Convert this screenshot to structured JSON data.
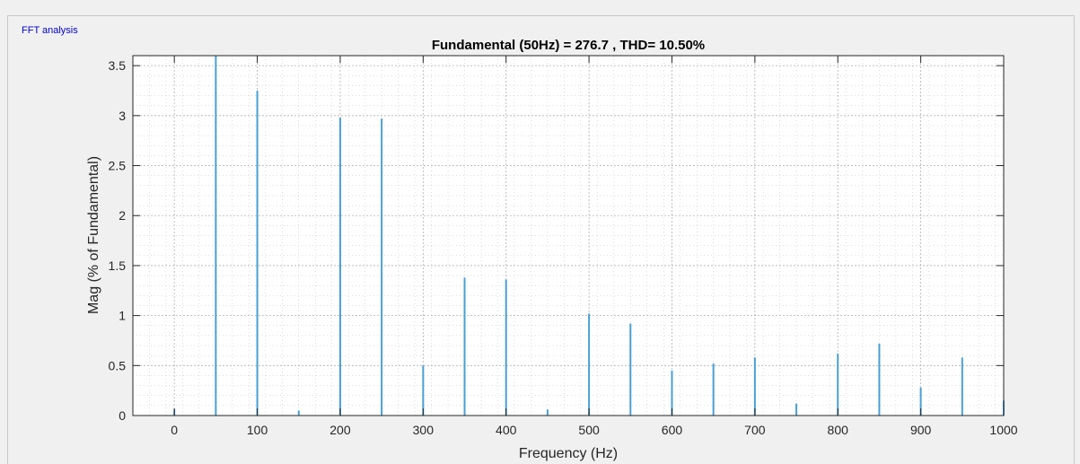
{
  "panel": {
    "title": "FFT analysis"
  },
  "colors": {
    "bar": "#4a9fd6",
    "axis": "#262626",
    "grid": "#bdbdbd",
    "background": "#ffffff"
  },
  "chart_data": {
    "type": "bar",
    "title": "Fundamental (50Hz) = 276.7 , THD= 10.50%",
    "xlabel": "Frequency (Hz)",
    "ylabel": "Mag (% of Fundamental)",
    "xlim": [
      -50,
      1000
    ],
    "ylim": [
      0,
      3.6
    ],
    "xticks": [
      0,
      100,
      200,
      300,
      400,
      500,
      600,
      700,
      800,
      900,
      1000
    ],
    "xtick_labels": [
      "0",
      "100",
      "200",
      "300",
      "400",
      "500",
      "600",
      "700",
      "800",
      "900",
      "1000"
    ],
    "yticks": [
      0,
      0.5,
      1,
      1.5,
      2,
      2.5,
      3,
      3.5
    ],
    "ytick_labels": [
      "0",
      "0.5",
      "1",
      "1.5",
      "2",
      "2.5",
      "3",
      "3.5"
    ],
    "grid": "on (major and minor)",
    "x": [
      0,
      50,
      100,
      150,
      200,
      250,
      300,
      350,
      400,
      450,
      500,
      550,
      600,
      650,
      700,
      750,
      800,
      850,
      900,
      950,
      1000
    ],
    "values": [
      0.06,
      3.6,
      3.25,
      0.05,
      2.98,
      2.97,
      0.5,
      1.38,
      1.36,
      0.06,
      1.02,
      0.92,
      0.45,
      0.52,
      0.58,
      0.12,
      0.62,
      0.72,
      0.28,
      0.58,
      0.15
    ]
  }
}
